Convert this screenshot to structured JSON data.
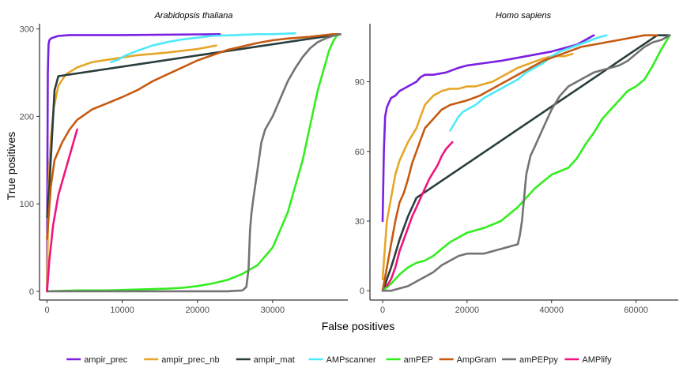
{
  "chart_data": {
    "type": "line",
    "xlabel": "False positives",
    "ylabel": "True positives",
    "legend_position": "bottom",
    "grid": false,
    "series_styles": [
      {
        "name": "ampir_prec",
        "color": "#7b1fe0"
      },
      {
        "name": "ampir_prec_nb",
        "color": "#e6a628"
      },
      {
        "name": "ampir_mat",
        "color": "#2a3d3d"
      },
      {
        "name": "AMPscanner",
        "color": "#4de9f9"
      },
      {
        "name": "amPEP",
        "color": "#33ee1f"
      },
      {
        "name": "AmpGram",
        "color": "#c55a11"
      },
      {
        "name": "amPEPpy",
        "color": "#737373"
      },
      {
        "name": "AMPlify",
        "color": "#f0157c"
      }
    ],
    "panels": [
      {
        "title": "Arabidopsis thaliana",
        "xlim": [
          -1000,
          40000
        ],
        "ylim": [
          -10,
          306
        ],
        "xticks": [
          0,
          10000,
          20000,
          30000
        ],
        "xtick_labels": [
          "0",
          "10000",
          "20000",
          "30000"
        ],
        "yticks": [
          0,
          100,
          200,
          300
        ],
        "ytick_labels": [
          "0",
          "100",
          "200",
          "300"
        ],
        "series": [
          {
            "name": "ampir_prec",
            "x": [
              0,
              50,
              100,
              200,
              300,
              500,
              800,
              1500,
              3000,
              10000,
              23000
            ],
            "y": [
              0,
              150,
              250,
              282,
              287,
              289,
              290,
              292,
              293,
              293,
              294
            ]
          },
          {
            "name": "ampir_prec_nb",
            "x": [
              0,
              200,
              500,
              900,
              1500,
              2500,
              4000,
              6000,
              9000,
              12000,
              16000,
              20000,
              22500
            ],
            "y": [
              0,
              120,
              175,
              210,
              235,
              248,
              256,
              262,
              266,
              270,
              273,
              277,
              281
            ]
          },
          {
            "name": "ampir_mat",
            "x": [
              0,
              300,
              1000,
              1500,
              39000
            ],
            "y": [
              85,
              120,
              230,
              246,
              294
            ]
          },
          {
            "name": "AMPscanner",
            "x": [
              8500,
              9500,
              10500,
              12000,
              14000,
              16000,
              18000,
              20000,
              22000,
              25000,
              28000,
              30000,
              33000
            ],
            "y": [
              262,
              265,
              270,
              275,
              281,
              285,
              288,
              290,
              292,
              293,
              294,
              294,
              295
            ]
          },
          {
            "name": "amPEP",
            "x": [
              0,
              4000,
              8000,
              12000,
              16000,
              18000,
              20000,
              22000,
              24000,
              26000,
              28000,
              30000,
              32000,
              34000,
              35000,
              36000,
              37000,
              37500,
              38000,
              38500,
              39000
            ],
            "y": [
              0,
              1,
              1,
              2,
              3,
              4,
              6,
              9,
              13,
              20,
              30,
              50,
              90,
              150,
              190,
              230,
              260,
              275,
              285,
              292,
              294
            ]
          },
          {
            "name": "AmpGram",
            "x": [
              0,
              500,
              1000,
              2000,
              3000,
              4000,
              5000,
              6000,
              8000,
              10000,
              12000,
              14000,
              16000,
              18000,
              20000,
              22000,
              24000,
              26000,
              28000,
              30000,
              32000,
              35000,
              38000,
              39000
            ],
            "y": [
              60,
              120,
              150,
              170,
              185,
              196,
              202,
              208,
              215,
              222,
              230,
              240,
              248,
              256,
              264,
              270,
              276,
              280,
              284,
              287,
              289,
              291,
              294,
              294
            ]
          },
          {
            "name": "amPEPpy",
            "x": [
              0,
              2000,
              5000,
              10000,
              15000,
              20000,
              24000,
              26000,
              26500,
              26800,
              27000,
              27200,
              27500,
              28000,
              28500,
              29000,
              30000,
              31000,
              32000,
              33000,
              34000,
              35000,
              36000,
              37000,
              38000,
              39000
            ],
            "y": [
              0,
              0,
              0,
              0,
              0,
              0,
              0,
              1,
              5,
              25,
              70,
              90,
              110,
              140,
              170,
              185,
              200,
              220,
              240,
              255,
              268,
              278,
              285,
              289,
              292,
              294
            ]
          },
          {
            "name": "AMPlify",
            "x": [
              0,
              300,
              800,
              1500,
              2500,
              3500,
              4000
            ],
            "y": [
              0,
              35,
              75,
              110,
              140,
              170,
              185
            ]
          }
        ]
      },
      {
        "title": "Homo sapiens",
        "xlim": [
          -3000,
          70000
        ],
        "ylim": [
          -4,
          115
        ],
        "xticks": [
          0,
          20000,
          40000,
          60000
        ],
        "xtick_labels": [
          "0",
          "20000",
          "40000",
          "60000"
        ],
        "yticks": [
          0,
          30,
          60,
          90
        ],
        "ytick_labels": [
          "0",
          "30",
          "60",
          "90"
        ],
        "series": [
          {
            "name": "ampir_prec",
            "x": [
              0,
              300,
              600,
              1000,
              1500,
              2000,
              3000,
              4000,
              5000,
              6000,
              7000,
              8000,
              9000,
              10000,
              12000,
              15000,
              18000,
              20000,
              24000,
              28000,
              34000,
              40000,
              46000,
              50000
            ],
            "y": [
              30,
              60,
              75,
              79,
              81,
              83,
              84,
              86,
              87,
              88,
              89,
              90,
              92,
              93,
              93,
              94,
              96,
              97,
              98,
              99,
              101,
              103,
              106,
              110
            ]
          },
          {
            "name": "ampir_prec_nb",
            "x": [
              0,
              1000,
              2000,
              3000,
              4000,
              5000,
              6000,
              7000,
              8000,
              9000,
              10000,
              12000,
              14000,
              16000,
              18000,
              20000,
              22000,
              24000,
              26000,
              28000,
              30000,
              32000,
              35000,
              38000,
              40000,
              43000,
              45000
            ],
            "y": [
              5,
              30,
              40,
              50,
              56,
              60,
              64,
              67,
              70,
              75,
              80,
              84,
              86,
              87,
              87,
              88,
              88,
              89,
              90,
              92,
              94,
              96,
              98,
              100,
              101,
              101,
              102
            ]
          },
          {
            "name": "ampir_mat",
            "x": [
              0,
              500,
              1000,
              2000,
              3000,
              4000,
              5000,
              6000,
              7000,
              8000,
              65000,
              68000
            ],
            "y": [
              0,
              2,
              5,
              10,
              16,
              22,
              27,
              32,
              36,
              40,
              110,
              110
            ]
          },
          {
            "name": "AMPscanner",
            "x": [
              16000,
              17000,
              18000,
              19000,
              20000,
              21000,
              22000,
              24000,
              26000,
              28000,
              30000,
              32000,
              34000,
              36000,
              38000,
              40000,
              42000,
              45000,
              48000,
              51000,
              53000
            ],
            "y": [
              69,
              72,
              75,
              77,
              78,
              79,
              80,
              83,
              85,
              87,
              89,
              91,
              94,
              96,
              98,
              101,
              103,
              105,
              107,
              109,
              110
            ]
          },
          {
            "name": "amPEP",
            "x": [
              0,
              2000,
              4000,
              6000,
              8000,
              10000,
              12000,
              14000,
              16000,
              18000,
              20000,
              24000,
              28000,
              32000,
              36000,
              40000,
              44000,
              46000,
              48000,
              50000,
              52000,
              54000,
              56000,
              58000,
              60000,
              62000,
              64000,
              66000,
              68000
            ],
            "y": [
              0,
              3,
              7,
              10,
              12,
              13,
              15,
              18,
              21,
              23,
              25,
              27,
              30,
              36,
              44,
              50,
              53,
              57,
              63,
              68,
              74,
              78,
              82,
              86,
              88,
              91,
              97,
              104,
              110
            ]
          },
          {
            "name": "AmpGram",
            "x": [
              0,
              1000,
              2000,
              3000,
              4000,
              5000,
              6000,
              7000,
              8000,
              9000,
              10000,
              12000,
              14000,
              16000,
              18000,
              20000,
              23000,
              26000,
              29000,
              32000,
              35000,
              38000,
              41000,
              44000,
              47000,
              50000,
              53000,
              56000,
              59000,
              62000,
              65000
            ],
            "y": [
              0,
              10,
              20,
              30,
              38,
              42,
              48,
              55,
              60,
              65,
              70,
              74,
              78,
              80,
              81,
              82,
              84,
              87,
              90,
              93,
              96,
              99,
              101,
              103,
              105,
              106,
              107,
              108,
              109,
              110,
              110
            ]
          },
          {
            "name": "amPEPpy",
            "x": [
              0,
              2000,
              4000,
              6000,
              8000,
              10000,
              12000,
              14000,
              16000,
              18000,
              20000,
              22000,
              24000,
              26000,
              28000,
              30000,
              32000,
              32500,
              33000,
              33500,
              34000,
              35000,
              36000,
              37000,
              38000,
              40000,
              42000,
              44000,
              46000,
              48000,
              50000,
              52000,
              54000,
              56000,
              58000,
              60000,
              62000,
              64000,
              66000,
              68000
            ],
            "y": [
              0,
              0,
              1,
              2,
              4,
              6,
              8,
              11,
              13,
              15,
              16,
              16,
              16,
              17,
              18,
              19,
              20,
              24,
              30,
              40,
              50,
              58,
              62,
              66,
              70,
              78,
              84,
              88,
              90,
              92,
              94,
              95,
              96,
              97,
              99,
              102,
              105,
              107,
              108,
              110
            ]
          },
          {
            "name": "AMPlify",
            "x": [
              1000,
              2000,
              3000,
              4000,
              5000,
              6000,
              7000,
              8000,
              9000,
              10000,
              11000,
              12000,
              13000,
              14000,
              15000,
              16000,
              16500
            ],
            "y": [
              2,
              5,
              10,
              17,
              22,
              27,
              32,
              36,
              40,
              44,
              48,
              51,
              54,
              58,
              61,
              63,
              64
            ]
          }
        ]
      }
    ]
  }
}
